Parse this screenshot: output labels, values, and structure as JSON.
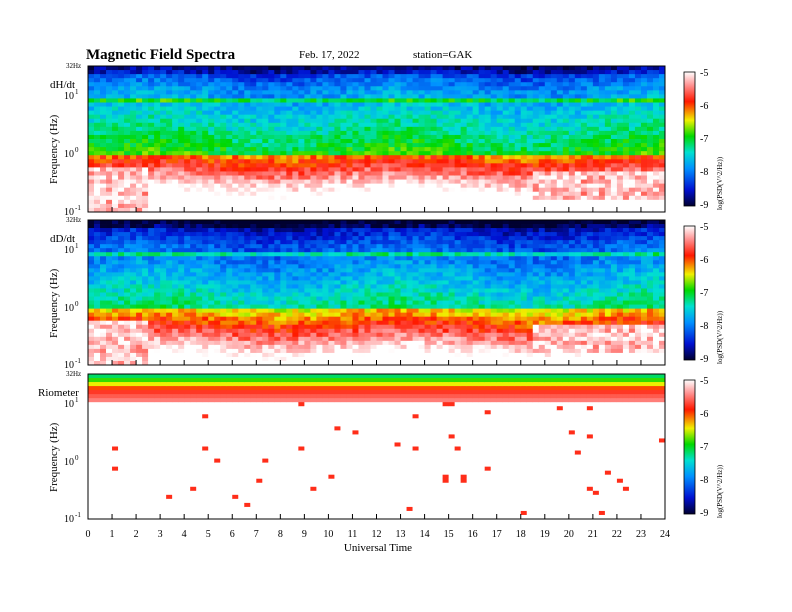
{
  "header": {
    "title": "Magnetic  Field  Spectra",
    "date": "Feb. 17, 2022",
    "station": "station=GAK"
  },
  "colors": {
    "scale": [
      "#000040",
      "#0000c8",
      "#0070ff",
      "#00e6e6",
      "#00e000",
      "#f0f000",
      "#ff2000",
      "#ffffff"
    ]
  },
  "chart_data": {
    "type": "heatmap",
    "x_label": "Universal Time",
    "x_ticks": [
      "0",
      "1",
      "2",
      "3",
      "4",
      "5",
      "6",
      "7",
      "8",
      "9",
      "10",
      "11",
      "12",
      "13",
      "14",
      "15",
      "16",
      "17",
      "18",
      "19",
      "20",
      "21",
      "22",
      "23",
      "24"
    ],
    "xlim": [
      0,
      24
    ],
    "panels": [
      {
        "name": "dH/dt",
        "ylabel": "Frequency  (Hz)",
        "top_label": "32Hz",
        "y_ticks": [
          {
            "base": "10",
            "exp": "1"
          },
          {
            "base": "10",
            "exp": "0"
          },
          {
            "base": "10",
            "exp": "-1"
          }
        ],
        "colorbar": {
          "label": "log(PSD(V^2/Hz))",
          "ticks": [
            "-5",
            "-6",
            "-7",
            "-8",
            "-9"
          ],
          "range": [
            -9,
            -5
          ]
        }
      },
      {
        "name": "dD/dt",
        "ylabel": "Frequency  (Hz)",
        "top_label": "32Hz",
        "y_ticks": [
          {
            "base": "10",
            "exp": "1"
          },
          {
            "base": "10",
            "exp": "0"
          },
          {
            "base": "10",
            "exp": "-1"
          }
        ],
        "colorbar": {
          "label": "log(PSD(V^2/Hz))",
          "ticks": [
            "-5",
            "-6",
            "-7",
            "-8",
            "-9"
          ],
          "range": [
            -9,
            -5
          ]
        }
      },
      {
        "name": "Riometer",
        "ylabel": "Frequency  (Hz)",
        "top_label": "32Hz",
        "y_ticks": [
          {
            "base": "10",
            "exp": "1"
          },
          {
            "base": "10",
            "exp": "0"
          },
          {
            "base": "10",
            "exp": "-1"
          }
        ],
        "colorbar": {
          "label": "log(PSD(V^2/Hz))",
          "ticks": [
            "-5",
            "-6",
            "-7",
            "-8",
            "-9"
          ],
          "range": [
            -9,
            -5
          ]
        }
      }
    ]
  }
}
